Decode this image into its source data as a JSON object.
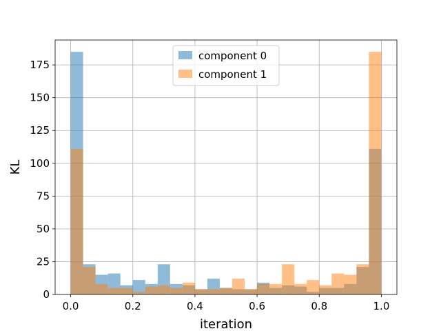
{
  "chart_data": {
    "type": "bar",
    "subtype": "overlapping-histogram",
    "title": "",
    "xlabel": "iteration",
    "ylabel": "KL",
    "xlim": [
      -0.05,
      1.05
    ],
    "ylim": [
      0,
      194
    ],
    "xticks": [
      "0.0",
      "0.2",
      "0.4",
      "0.6",
      "0.8",
      "1.0"
    ],
    "yticks": [
      "0",
      "25",
      "50",
      "75",
      "100",
      "125",
      "150",
      "175"
    ],
    "grid": true,
    "legend_position": "top-center",
    "bin_edges": [
      0.0,
      0.04,
      0.08,
      0.12,
      0.16,
      0.2,
      0.24,
      0.28,
      0.32,
      0.36,
      0.4,
      0.44,
      0.48,
      0.52,
      0.56,
      0.6,
      0.64,
      0.68,
      0.72,
      0.76,
      0.8,
      0.84,
      0.88,
      0.92,
      0.96,
      1.0
    ],
    "series": [
      {
        "name": "component 0",
        "color": "#1f77b4",
        "values": [
          185,
          23,
          15,
          16,
          7,
          11,
          8,
          23,
          8,
          7,
          4,
          12,
          5,
          4,
          4,
          9,
          5,
          7,
          6,
          2,
          5,
          5,
          8,
          21,
          111
        ]
      },
      {
        "name": "component 1",
        "color": "#ff7f0e",
        "values": [
          111,
          21,
          8,
          5,
          5,
          2,
          6,
          7,
          5,
          9,
          4,
          4,
          5,
          12,
          4,
          8,
          8,
          23,
          8,
          11,
          7,
          16,
          15,
          23,
          185
        ]
      }
    ],
    "opacity": 0.5
  }
}
